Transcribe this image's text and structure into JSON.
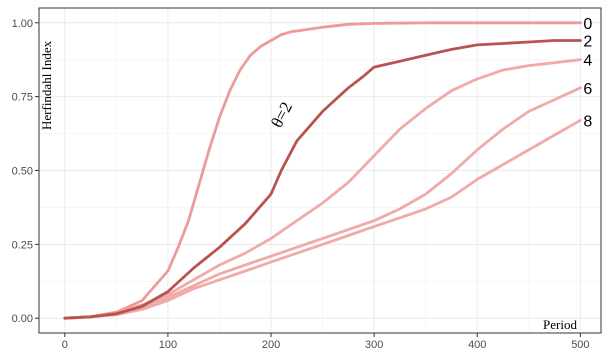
{
  "chart_data": {
    "type": "line",
    "title": "",
    "xlabel": "Period",
    "ylabel": "Herfindahl Index",
    "xlim": [
      -25,
      520
    ],
    "ylim": [
      -0.05,
      1.05
    ],
    "x_ticks": [
      0,
      100,
      200,
      300,
      400,
      500
    ],
    "x_tick_labels": [
      "0",
      "100",
      "200",
      "300",
      "400",
      "500"
    ],
    "y_ticks": [
      0,
      0.25,
      0.5,
      0.75,
      1.0
    ],
    "y_tick_labels": [
      "0.00",
      "0.25",
      "0.50",
      "0.75",
      "1.00"
    ],
    "grid": true,
    "legend": "none",
    "series": [
      {
        "name": "0",
        "color": "#ef9a9a",
        "x": [
          0,
          25,
          50,
          75,
          100,
          110,
          120,
          130,
          140,
          150,
          160,
          170,
          180,
          190,
          200,
          210,
          220,
          230,
          240,
          250,
          275,
          300,
          350,
          400,
          450,
          500
        ],
        "y": [
          0.0,
          0.005,
          0.02,
          0.06,
          0.16,
          0.24,
          0.33,
          0.45,
          0.57,
          0.68,
          0.77,
          0.84,
          0.89,
          0.92,
          0.94,
          0.96,
          0.97,
          0.975,
          0.98,
          0.985,
          0.995,
          0.998,
          1.0,
          1.0,
          1.0,
          1.0
        ]
      },
      {
        "name": "2",
        "color": "#b85450",
        "x": [
          0,
          25,
          50,
          75,
          100,
          125,
          150,
          175,
          200,
          210,
          225,
          250,
          275,
          290,
          300,
          325,
          350,
          375,
          400,
          425,
          450,
          475,
          500
        ],
        "y": [
          0.0,
          0.005,
          0.015,
          0.04,
          0.09,
          0.17,
          0.24,
          0.32,
          0.42,
          0.5,
          0.6,
          0.7,
          0.78,
          0.82,
          0.85,
          0.87,
          0.89,
          0.91,
          0.925,
          0.93,
          0.935,
          0.94,
          0.94
        ]
      },
      {
        "name": "4",
        "color": "#f0aaaa",
        "x": [
          0,
          25,
          50,
          75,
          100,
          125,
          150,
          175,
          200,
          225,
          250,
          275,
          300,
          325,
          350,
          375,
          400,
          425,
          450,
          475,
          500
        ],
        "y": [
          0.0,
          0.005,
          0.02,
          0.045,
          0.08,
          0.13,
          0.18,
          0.22,
          0.27,
          0.33,
          0.39,
          0.46,
          0.55,
          0.64,
          0.71,
          0.77,
          0.81,
          0.84,
          0.855,
          0.865,
          0.875
        ]
      },
      {
        "name": "6",
        "color": "#f0aaaa",
        "x": [
          0,
          25,
          50,
          75,
          100,
          125,
          150,
          175,
          200,
          225,
          250,
          275,
          300,
          325,
          350,
          375,
          400,
          425,
          450,
          475,
          500
        ],
        "y": [
          0.0,
          0.005,
          0.015,
          0.035,
          0.07,
          0.11,
          0.15,
          0.18,
          0.21,
          0.24,
          0.27,
          0.3,
          0.33,
          0.37,
          0.42,
          0.49,
          0.57,
          0.64,
          0.7,
          0.74,
          0.78
        ]
      },
      {
        "name": "8",
        "color": "#f0aaaa",
        "x": [
          0,
          25,
          50,
          75,
          100,
          125,
          150,
          175,
          200,
          225,
          250,
          275,
          300,
          325,
          350,
          375,
          400,
          425,
          450,
          475,
          500
        ],
        "y": [
          0.0,
          0.005,
          0.012,
          0.03,
          0.06,
          0.1,
          0.13,
          0.16,
          0.19,
          0.22,
          0.25,
          0.28,
          0.31,
          0.34,
          0.37,
          0.41,
          0.47,
          0.52,
          0.57,
          0.62,
          0.67
        ]
      }
    ],
    "annotations": [
      {
        "text": "θ=2",
        "x": 215,
        "y": 0.68,
        "rotate": -62
      }
    ]
  }
}
